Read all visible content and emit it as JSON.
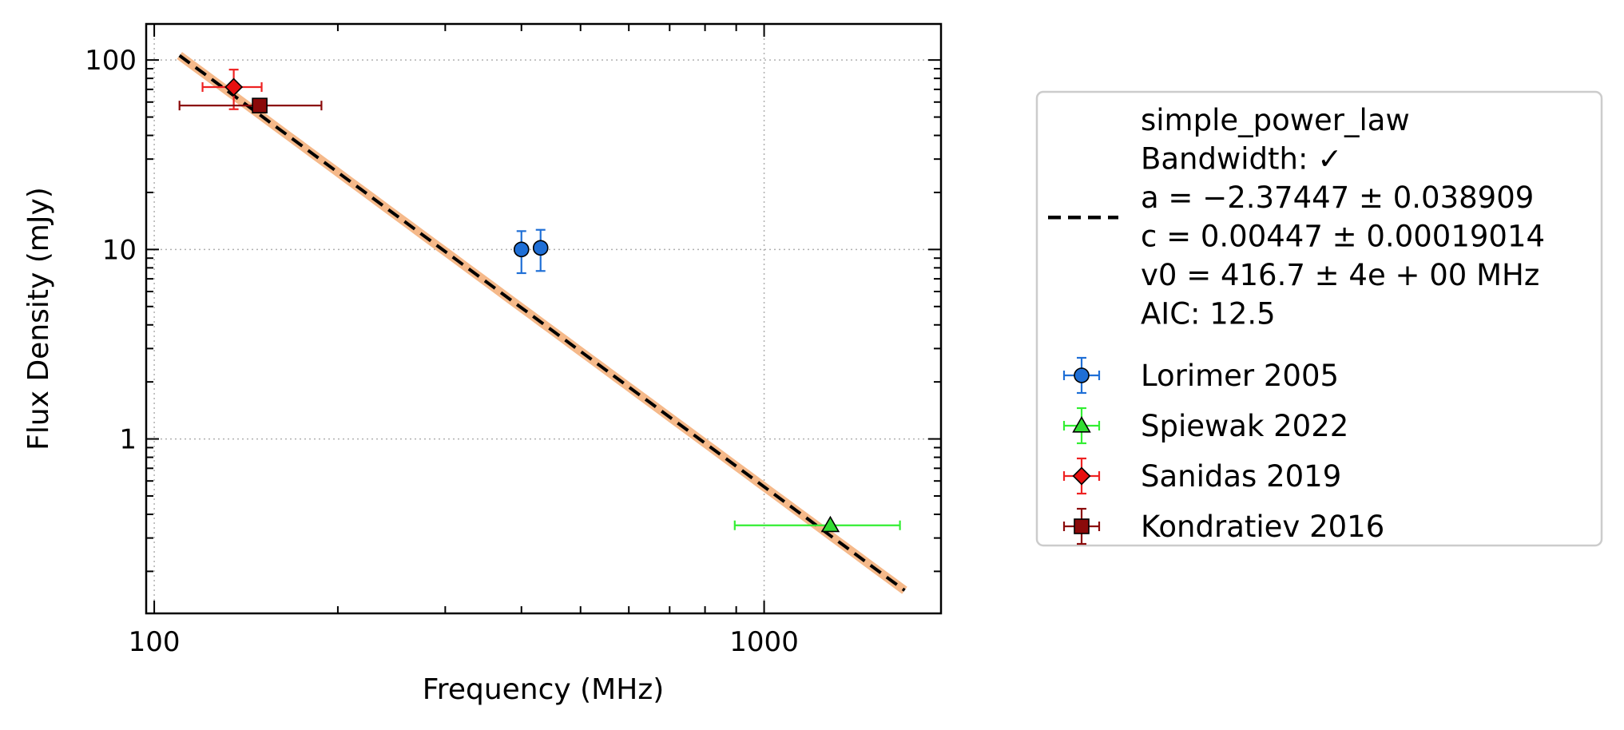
{
  "chart_data": {
    "type": "scatter",
    "xlabel": "Frequency (MHz)",
    "ylabel": "Flux Density (mJy)",
    "xscale": "log",
    "yscale": "log",
    "xlim": [
      97,
      1950
    ],
    "ylim": [
      0.12,
      155
    ],
    "x_ticks": [
      {
        "value": 100,
        "label": "100"
      },
      {
        "value": 1000,
        "label": "1000"
      }
    ],
    "y_ticks": [
      {
        "value": 1,
        "label": "1"
      },
      {
        "value": 10,
        "label": "10"
      },
      {
        "value": 100,
        "label": "100"
      }
    ],
    "grid": true,
    "legend_placement": "outside-right",
    "fit": {
      "model_name": "simple_power_law",
      "legend_lines": [
        "simple_power_law",
        "Bandwidth: ✓",
        "a = −2.37447 ± 0.038909",
        "c = 0.00447 ± 0.00019014",
        "v0 = 416.7 ± 4e + 00 MHz",
        "AIC: 12.5"
      ],
      "a": -2.37447,
      "c": 0.00447,
      "v0": 416.7,
      "x_range": [
        110,
        1700
      ],
      "line_color": "#000000",
      "band_color": "#f5b98a"
    },
    "series": [
      {
        "name": "Lorimer 2005",
        "marker": "circle",
        "color": "#1f6fd6",
        "err_color": "#1f6fd6",
        "points": [
          {
            "x": 400,
            "y": 10.0,
            "y_lo": 7.5,
            "y_hi": 12.5
          },
          {
            "x": 430,
            "y": 10.2,
            "y_lo": 7.7,
            "y_hi": 12.7
          }
        ]
      },
      {
        "name": "Spiewak 2022",
        "marker": "triangle",
        "color": "#33dd33",
        "err_color": "#33ee33",
        "points": [
          {
            "x": 1284,
            "y": 0.35,
            "x_lo": 895,
            "x_hi": 1670
          }
        ]
      },
      {
        "name": "Sanidas 2019",
        "marker": "diamond",
        "color": "#e81010",
        "err_color": "#ee2222",
        "points": [
          {
            "x": 135,
            "y": 72,
            "x_lo": 120,
            "x_hi": 150,
            "y_lo": 55,
            "y_hi": 89
          }
        ]
      },
      {
        "name": "Kondratiev 2016",
        "marker": "square",
        "color": "#8b0a0a",
        "err_color": "#8b0a0a",
        "points": [
          {
            "x": 148.9,
            "y": 57.5,
            "x_lo": 110,
            "x_hi": 188
          }
        ]
      }
    ]
  }
}
